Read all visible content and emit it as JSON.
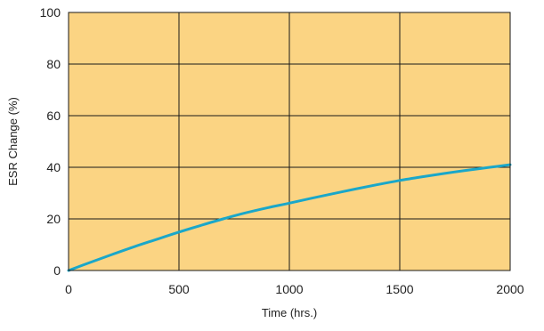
{
  "chart_data": {
    "type": "line",
    "title": "",
    "xlabel": "Time (hrs.)",
    "ylabel": "ESR Change (%)",
    "xlim": [
      0,
      2000
    ],
    "ylim": [
      0,
      100
    ],
    "xticks": [
      0,
      500,
      1000,
      1500,
      2000
    ],
    "yticks": [
      0,
      20,
      40,
      60,
      80,
      100
    ],
    "xtick_labels": [
      "0",
      "500",
      "1000",
      "1500",
      "2000"
    ],
    "ytick_labels": [
      "0",
      "20",
      "40",
      "60",
      "80",
      "100"
    ],
    "grid": true,
    "legend": "none",
    "series": [
      {
        "x": [
          0,
          100,
          200,
          300,
          400,
          500,
          600,
          700,
          800,
          900,
          1000,
          1100,
          1200,
          1300,
          1400,
          1500,
          1600,
          1700,
          1800,
          1900,
          2000
        ],
        "values": [
          0,
          3.2,
          6.3,
          9.3,
          12.1,
          14.9,
          17.5,
          20.0,
          22.3,
          24.3,
          26.1,
          28.0,
          29.8,
          31.6,
          33.3,
          34.9,
          36.3,
          37.6,
          38.8,
          39.9,
          41.0
        ]
      }
    ],
    "colors": {
      "plot_background": "#FBD483",
      "grid": "#1a1a1a",
      "line": "#1AA7C9",
      "frame": "#1a1a1a"
    }
  }
}
